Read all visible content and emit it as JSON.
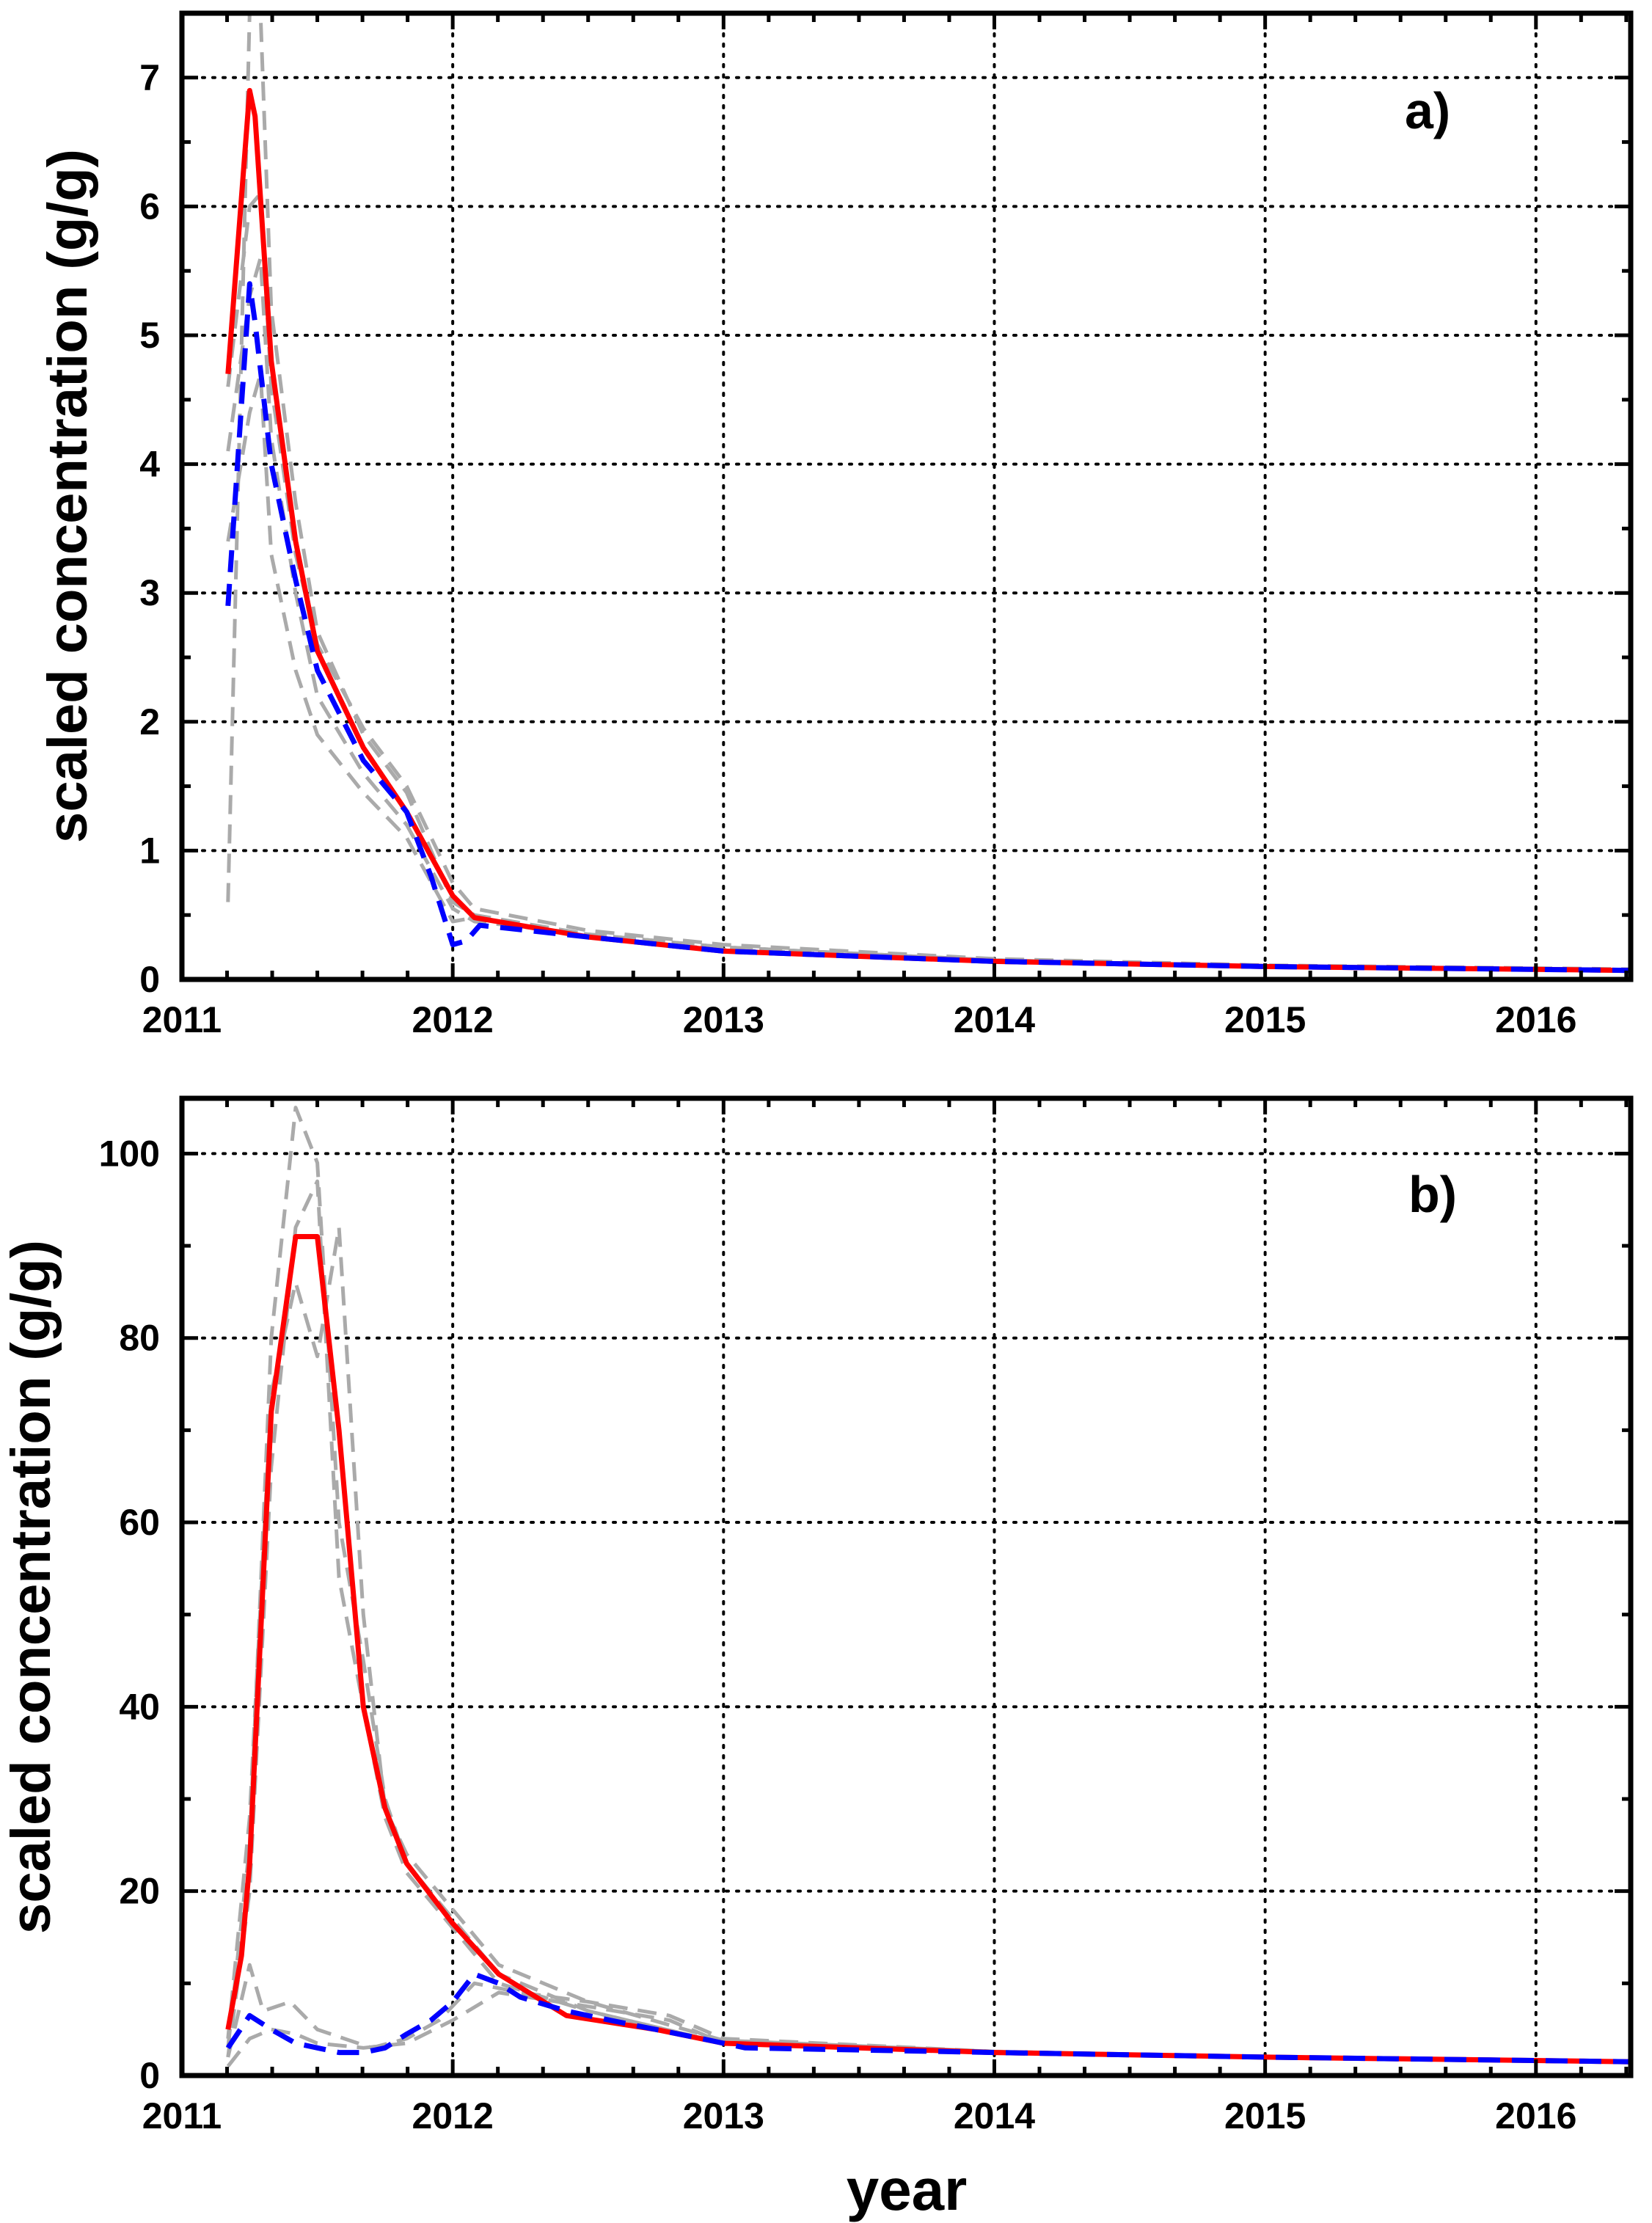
{
  "chart_data": [
    {
      "type": "line",
      "panel_label": "a)",
      "xlabel": "",
      "ylabel": "scaled concentration (g/g)",
      "xlim": [
        2011.0,
        2016.35
      ],
      "ylim": [
        0,
        7.5
      ],
      "xticks": [
        2011,
        2012,
        2013,
        2014,
        2015,
        2016
      ],
      "yticks": [
        0,
        1,
        2,
        3,
        4,
        5,
        6,
        7
      ],
      "grid": true,
      "colors": {
        "red": "#ff0000",
        "blue": "#0000ff",
        "gray": "#aaaaaa"
      },
      "series": [
        {
          "style": "gray-dashed",
          "x": [
            2011.17,
            2011.25,
            2011.29,
            2011.33,
            2011.42,
            2011.5,
            2011.67,
            2011.83,
            2012.0,
            2012.08,
            2012.5,
            2013.0,
            2014.0,
            2015.0,
            2016.35
          ],
          "y": [
            0.6,
            7.5,
            7.5,
            5.2,
            3.7,
            2.7,
            1.9,
            1.45,
            0.6,
            0.5,
            0.35,
            0.25,
            0.15,
            0.1,
            0.07
          ]
        },
        {
          "style": "gray-dashed",
          "x": [
            2011.17,
            2011.25,
            2011.29,
            2011.33,
            2011.42,
            2011.5,
            2011.67,
            2011.83,
            2012.0,
            2012.08,
            2012.5,
            2013.0,
            2014.0,
            2015.0,
            2016.35
          ],
          "y": [
            4.1,
            5.3,
            5.6,
            4.2,
            3.0,
            2.2,
            1.6,
            1.2,
            0.55,
            0.45,
            0.35,
            0.25,
            0.15,
            0.1,
            0.07
          ]
        },
        {
          "style": "gray-dashed",
          "x": [
            2011.17,
            2011.25,
            2011.29,
            2011.33,
            2011.42,
            2011.5,
            2011.67,
            2011.83,
            2012.0,
            2012.08,
            2012.5,
            2013.0,
            2014.0,
            2015.0,
            2016.35
          ],
          "y": [
            3.4,
            4.4,
            4.7,
            3.3,
            2.4,
            1.9,
            1.45,
            1.1,
            0.45,
            0.48,
            0.33,
            0.23,
            0.15,
            0.1,
            0.07
          ]
        },
        {
          "style": "gray-dashed",
          "x": [
            2011.17,
            2011.25,
            2011.29,
            2011.33,
            2011.42,
            2011.5,
            2011.67,
            2011.83,
            2012.0,
            2012.08,
            2012.5,
            2013.0,
            2014.0,
            2015.0,
            2016.35
          ],
          "y": [
            4.6,
            6.0,
            6.1,
            4.6,
            3.3,
            2.6,
            1.95,
            1.5,
            0.75,
            0.55,
            0.38,
            0.27,
            0.16,
            0.11,
            0.08
          ]
        },
        {
          "style": "red-solid",
          "x": [
            2011.17,
            2011.25,
            2011.27,
            2011.33,
            2011.42,
            2011.5,
            2011.67,
            2011.83,
            2012.0,
            2012.08,
            2012.5,
            2013.0,
            2014.0,
            2015.0,
            2016.35
          ],
          "y": [
            4.7,
            6.9,
            6.7,
            4.8,
            3.4,
            2.55,
            1.8,
            1.3,
            0.65,
            0.48,
            0.33,
            0.22,
            0.14,
            0.1,
            0.07
          ]
        },
        {
          "style": "blue-dashed",
          "x": [
            2011.17,
            2011.25,
            2011.27,
            2011.33,
            2011.42,
            2011.5,
            2011.67,
            2011.83,
            2011.92,
            2012.0,
            2012.05,
            2012.1,
            2012.5,
            2013.0,
            2014.0,
            2015.0,
            2016.35
          ],
          "y": [
            2.9,
            5.4,
            5.1,
            4.0,
            3.1,
            2.4,
            1.7,
            1.3,
            0.8,
            0.27,
            0.3,
            0.42,
            0.33,
            0.22,
            0.14,
            0.1,
            0.07
          ]
        }
      ]
    },
    {
      "type": "line",
      "panel_label": "b)",
      "xlabel": "year",
      "ylabel": "scaled concentration (g/g)",
      "xlim": [
        2011.0,
        2016.35
      ],
      "ylim": [
        0,
        106
      ],
      "xticks": [
        2011,
        2012,
        2013,
        2014,
        2015,
        2016
      ],
      "yticks": [
        0,
        20,
        40,
        60,
        80,
        100
      ],
      "grid": true,
      "colors": {
        "red": "#ff0000",
        "blue": "#0000ff",
        "gray": "#aaaaaa"
      },
      "series": [
        {
          "style": "gray-dashed",
          "x": [
            2011.17,
            2011.25,
            2011.33,
            2011.42,
            2011.5,
            2011.58,
            2011.67,
            2011.75,
            2011.83,
            2012.0,
            2012.17,
            2012.5,
            2013.0,
            2014.0,
            2015.0,
            2016.35
          ],
          "y": [
            3,
            25,
            80,
            105,
            99,
            60,
            45,
            30,
            23,
            17,
            11,
            7,
            3.5,
            2.5,
            2,
            1.5
          ]
        },
        {
          "style": "gray-dashed",
          "x": [
            2011.17,
            2011.25,
            2011.33,
            2011.42,
            2011.5,
            2011.58,
            2011.67,
            2011.75,
            2011.83,
            2012.0,
            2012.17,
            2012.5,
            2013.0,
            2014.0,
            2015.0,
            2016.35
          ],
          "y": [
            2,
            20,
            66,
            92,
            97,
            54,
            40,
            28,
            22,
            16,
            10,
            7,
            3.5,
            2.5,
            2,
            1.5
          ]
        },
        {
          "style": "gray-dashed",
          "x": [
            2011.17,
            2011.25,
            2011.33,
            2011.42,
            2011.5,
            2011.58,
            2011.67,
            2011.75,
            2011.83,
            2012.0,
            2012.17,
            2012.5,
            2013.0,
            2014.0,
            2015.0,
            2016.35
          ],
          "y": [
            4,
            28,
            74,
            86,
            78,
            92,
            50,
            29,
            24,
            18,
            12,
            8,
            3.8,
            2.6,
            2,
            1.5
          ]
        },
        {
          "style": "gray-dashed",
          "x": [
            2011.17,
            2011.25,
            2011.3,
            2011.4,
            2011.5,
            2011.6,
            2011.7,
            2011.83,
            2011.95,
            2012.08,
            2012.25,
            2012.5,
            2012.8,
            2013.0,
            2014.0,
            2015.0,
            2016.35
          ],
          "y": [
            2,
            12,
            7,
            8,
            5,
            4,
            3,
            4,
            6,
            10,
            9,
            8,
            6.5,
            4,
            2.6,
            2,
            1.5
          ]
        },
        {
          "style": "gray-dashed",
          "x": [
            2011.17,
            2011.25,
            2011.33,
            2011.42,
            2011.5,
            2011.67,
            2011.83,
            2012.0,
            2012.17,
            2012.5,
            2012.8,
            2013.0,
            2014.0,
            2015.0,
            2016.35
          ],
          "y": [
            1,
            4,
            5,
            4.5,
            3.5,
            3,
            3.5,
            6,
            9,
            7.5,
            6,
            3.5,
            2.5,
            2,
            1.5
          ]
        },
        {
          "style": "red-solid",
          "x": [
            2011.17,
            2011.22,
            2011.25,
            2011.33,
            2011.42,
            2011.5,
            2011.58,
            2011.67,
            2011.75,
            2011.83,
            2012.0,
            2012.17,
            2012.42,
            2012.75,
            2013.0,
            2014.0,
            2015.0,
            2016.35
          ],
          "y": [
            5,
            13,
            23,
            72,
            91,
            91,
            70,
            40,
            29,
            23,
            16.5,
            11,
            6.5,
            5,
            3.5,
            2.5,
            2,
            1.5
          ]
        },
        {
          "style": "blue-dashed",
          "x": [
            2011.17,
            2011.25,
            2011.33,
            2011.42,
            2011.5,
            2011.58,
            2011.67,
            2011.75,
            2011.83,
            2011.92,
            2012.0,
            2012.08,
            2012.17,
            2012.25,
            2012.42,
            2012.58,
            2012.75,
            2012.92,
            2013.0,
            2013.08,
            2014.0,
            2015.0,
            2016.35
          ],
          "y": [
            3,
            6.5,
            5,
            3.5,
            3,
            2.5,
            2.5,
            3,
            4.5,
            6,
            8,
            11,
            10,
            8.5,
            7,
            6,
            5,
            4,
            3.5,
            3,
            2.5,
            2,
            1.5
          ]
        }
      ]
    }
  ]
}
